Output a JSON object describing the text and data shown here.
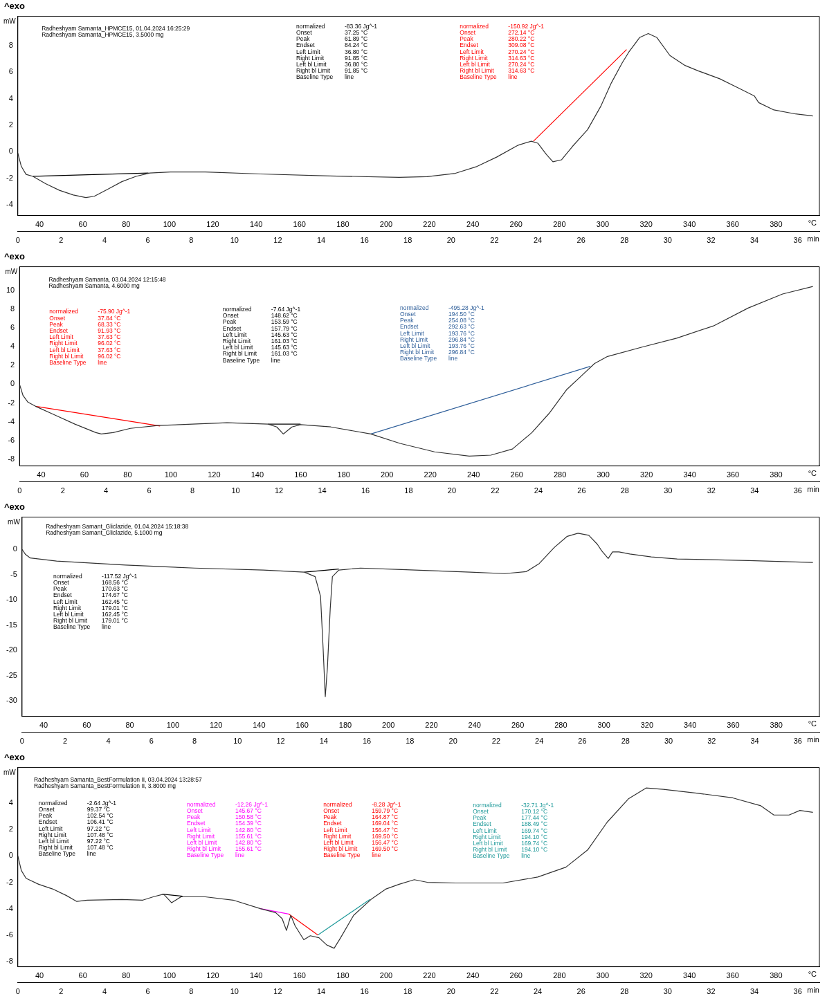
{
  "chart_data": [
    {
      "type": "line",
      "title": "^exo",
      "ylabel": "mW",
      "xlabel": "min",
      "x2label": "°C",
      "xlim": [
        0,
        37
      ],
      "xticks": [
        0,
        2,
        4,
        6,
        8,
        10,
        12,
        14,
        16,
        18,
        20,
        22,
        24,
        26,
        28,
        30,
        32,
        34,
        36
      ],
      "x2lim": [
        30,
        400
      ],
      "x2ticks": [
        40,
        60,
        80,
        100,
        120,
        140,
        160,
        180,
        200,
        220,
        240,
        260,
        280,
        300,
        320,
        340,
        360,
        380
      ],
      "ylim": [
        -4.8,
        10.2
      ],
      "yticks": [
        -4,
        -2,
        0,
        2,
        4,
        6,
        8
      ],
      "grid": false,
      "legend": false,
      "marker": "none",
      "line_style": "solid",
      "annotations": [
        "Radheshyam Samanta_HPMCE15, 01.04.2024 16:25:29\nRadheshyam Samanta_HPMCE15, 3.5000 mg",
        "normalized\t-83.36 Jg^-1\nOnset\t37.25 °C\nPeak\t61.89 °C\nEndset\t84.24 °C\nLeft Limit\t36.80 °C\nRight Limit\t91.85 °C\nLeft bl Limit\t36.80 °C\nRight bl Limit\t91.85 °C\nBaseline Type\tline",
        "normalized\t-150.92 Jg^-1\nOnset\t272.14 °C\nPeak\t280.22 °C\nEndset\t309.08 °C\nLeft Limit\t270.24 °C\nRight Limit\t314.63 °C\nLeft bl Limit\t270.24 °C\nRight bl Limit\t314.63 °C\nBaseline Type\tline"
      ],
      "series": [
        {
          "color": "#333333",
          "x": [
            0,
            0.16,
            0.38,
            0.7,
            1.28,
            1.92,
            2.56,
            3.14,
            3.53,
            4.17,
            4.8,
            5.45,
            6.09,
            7.05,
            8.65,
            11.2,
            14.4,
            17.6,
            18.9,
            20.2,
            21.2,
            22.1,
            23.1,
            23.7,
            24.0,
            24.4,
            24.7,
            25.1,
            25.6,
            26.3,
            26.9,
            27.4,
            27.9,
            28.2,
            28.7,
            29.1,
            29.5,
            30.1,
            30.8,
            31.4,
            32.4,
            33.2,
            34.0,
            34.2,
            34.9,
            35.9,
            36.7
          ],
          "values": [
            -0.1,
            -1.1,
            -1.7,
            -1.85,
            -2.4,
            -2.9,
            -3.25,
            -3.45,
            -3.35,
            -2.8,
            -2.25,
            -1.85,
            -1.6,
            -1.52,
            -1.52,
            -1.67,
            -1.82,
            -1.92,
            -1.87,
            -1.62,
            -1.1,
            -0.4,
            0.5,
            0.8,
            0.65,
            -0.2,
            -0.75,
            -0.6,
            0.4,
            1.67,
            3.4,
            5.2,
            6.7,
            7.5,
            8.6,
            8.9,
            8.6,
            7.25,
            6.5,
            6.1,
            5.5,
            4.85,
            4.2,
            3.7,
            3.15,
            2.85,
            2.7
          ]
        },
        {
          "color": "#000000",
          "x": [
            0.7,
            6.03
          ],
          "values": [
            -1.85,
            -1.6
          ]
        },
        {
          "color": "#ff0000",
          "x": [
            23.8,
            28.1
          ],
          "values": [
            0.8,
            7.7
          ]
        }
      ]
    },
    {
      "type": "line",
      "title": "^exo",
      "ylabel": "mW",
      "xlabel": "min",
      "x2label": "°C",
      "xlim": [
        0,
        37
      ],
      "xticks": [
        0,
        2,
        4,
        6,
        8,
        10,
        12,
        14,
        16,
        18,
        20,
        22,
        24,
        26,
        28,
        30,
        32,
        34,
        36
      ],
      "x2lim": [
        30,
        400
      ],
      "x2ticks": [
        40,
        60,
        80,
        100,
        120,
        140,
        160,
        180,
        200,
        220,
        240,
        260,
        280,
        300,
        320,
        340,
        360,
        380
      ],
      "ylim": [
        -8.7,
        12.5
      ],
      "yticks": [
        -8,
        -6,
        -4,
        -2,
        0,
        2,
        4,
        6,
        8,
        10
      ],
      "grid": false,
      "legend": false,
      "marker": "none",
      "line_style": "solid",
      "annotations": [
        "Radheshyam Samanta, 03.04.2024 12:15:48\nRadheshyam Samanta, 4.6000 mg",
        "normalized\t-75.90 Jg^-1\nOnset\t37.84 °C\nPeak\t68.33 °C\nEndset\t91.93 °C\nLeft Limit\t37.63 °C\nRight Limit\t96.02 °C\nLeft bl Limit\t37.63 °C\nRight bl Limit\t96.02 °C\nBaseline Type\tline",
        "normalized\t-7.64 Jg^-1\nOnset\t148.62 °C\nPeak\t153.59 °C\nEndset\t157.79 °C\nLeft Limit\t145.63 °C\nRight Limit\t161.03 °C\nLeft bl Limit\t145.63 °C\nRight bl Limit\t161.03 °C\nBaseline Type\tline",
        "normalized\t-495.28 Jg^-1\nOnset\t194.50 °C\nPeak\t254.08 °C\nEndset\t292.63 °C\nLeft Limit\t193.76 °C\nRight Limit\t296.84 °C\nLeft bl Limit\t193.76 °C\nRight bl Limit\t296.84 °C\nBaseline Type\tline"
      ],
      "series": [
        {
          "color": "#333333",
          "x": [
            0,
            0.16,
            0.38,
            0.74,
            1.6,
            2.56,
            3.53,
            3.78,
            4.33,
            5.13,
            6.4,
            8.0,
            9.6,
            11.5,
            11.9,
            12.2,
            12.6,
            13.0,
            14.4,
            16.25,
            17.6,
            19.2,
            20.8,
            21.8,
            22.8,
            23.7,
            24.5,
            25.3,
            26.0,
            26.6,
            27.2,
            28.8,
            30.4,
            32.1,
            33.7,
            35.3,
            36.7
          ],
          "values": [
            0,
            -1.2,
            -1.9,
            -2.35,
            -3.25,
            -4.25,
            -5.15,
            -5.3,
            -5.15,
            -4.7,
            -4.4,
            -4.25,
            -4.1,
            -4.25,
            -4.55,
            -5.3,
            -4.55,
            -4.3,
            -4.55,
            -5.3,
            -6.3,
            -7.2,
            -7.65,
            -7.55,
            -6.9,
            -5.15,
            -3.1,
            -0.6,
            0.9,
            2.2,
            2.95,
            3.95,
            4.9,
            6.2,
            8.1,
            9.6,
            10.4
          ]
        },
        {
          "color": "#ff0000",
          "x": [
            0.74,
            6.5
          ],
          "values": [
            -2.35,
            -4.45
          ]
        },
        {
          "color": "#000000",
          "x": [
            11.5,
            13.0
          ],
          "values": [
            -4.25,
            -4.25
          ]
        },
        {
          "color": "#2f5f9a",
          "x": [
            16.25,
            26.4
          ],
          "values": [
            -5.3,
            1.9
          ]
        }
      ]
    },
    {
      "type": "line",
      "title": "^exo",
      "ylabel": "mW",
      "xlabel": "min",
      "x2label": "°C",
      "xlim": [
        0,
        37
      ],
      "xticks": [
        0,
        2,
        4,
        6,
        8,
        10,
        12,
        14,
        16,
        18,
        20,
        22,
        24,
        26,
        28,
        30,
        32,
        34,
        36
      ],
      "x2lim": [
        30,
        400
      ],
      "x2ticks": [
        40,
        60,
        80,
        100,
        120,
        140,
        160,
        180,
        200,
        220,
        240,
        260,
        280,
        300,
        320,
        340,
        360,
        380
      ],
      "ylim": [
        -33.1,
        6.4
      ],
      "yticks": [
        -30,
        -25,
        -20,
        -15,
        -10,
        -5,
        0
      ],
      "grid": false,
      "legend": false,
      "marker": "none",
      "line_style": "solid",
      "annotations": [
        "Radheshyam Samant_Gliclazide, 01.04.2024 15:18:38\nRadheshyam Samant_Gliclazide, 5.1000 mg",
        "normalized\t-117.52 Jg^-1\nOnset\t168.56 °C\nPeak\t170.63 °C\nEndset\t174.67 °C\nLeft Limit\t162.45 °C\nRight Limit\t179.01 °C\nLeft bl Limit\t162.45 °C\nRight bl Limit\t179.01 °C\nBaseline Type\tline"
      ],
      "series": [
        {
          "color": "#333333",
          "x": [
            0,
            0.16,
            0.38,
            1.6,
            4.8,
            8.0,
            11.2,
            13.1,
            13.6,
            13.85,
            13.97,
            14.07,
            14.17,
            14.3,
            14.4,
            14.7,
            15.7,
            17.6,
            20.8,
            22.4,
            23.4,
            24.0,
            24.7,
            25.3,
            25.8,
            26.3,
            26.7,
            26.9,
            27.2,
            27.4,
            27.7,
            28.2,
            29.2,
            30.4,
            33.7,
            36.7
          ],
          "values": [
            0,
            -1.0,
            -1.7,
            -2.3,
            -3.1,
            -3.7,
            -4.1,
            -4.5,
            -5.4,
            -9.3,
            -19.6,
            -29.2,
            -23.4,
            -11.8,
            -5.4,
            -4.1,
            -3.7,
            -4.0,
            -4.5,
            -4.8,
            -4.4,
            -2.8,
            0.4,
            2.6,
            3.2,
            2.8,
            1.0,
            -0.3,
            -1.8,
            -0.5,
            -0.5,
            -0.9,
            -1.5,
            -1.9,
            -2.2,
            -2.6
          ]
        },
        {
          "color": "#000000",
          "x": [
            13.1,
            14.7
          ],
          "values": [
            -4.5,
            -3.9
          ]
        }
      ]
    },
    {
      "type": "line",
      "title": "^exo",
      "ylabel": "mW",
      "xlabel": "min",
      "x2label": "°C",
      "xlim": [
        0,
        37
      ],
      "xticks": [
        0,
        2,
        4,
        6,
        8,
        10,
        12,
        14,
        16,
        18,
        20,
        22,
        24,
        26,
        28,
        30,
        32,
        34,
        36
      ],
      "x2lim": [
        30,
        400
      ],
      "x2ticks": [
        40,
        60,
        80,
        100,
        120,
        140,
        160,
        180,
        200,
        220,
        240,
        260,
        280,
        300,
        320,
        340,
        360,
        380
      ],
      "ylim": [
        -8.4,
        6.7
      ],
      "yticks": [
        -8,
        -6,
        -4,
        -2,
        0,
        2,
        4
      ],
      "grid": false,
      "legend": false,
      "marker": "none",
      "line_style": "solid",
      "annotations": [
        "Radheshyam Samanta_BestFormulation II, 03.04.2024 13:28:57\nRadheshyam Samanta_BestFormulation II, 3.8000 mg",
        "normalized\t-2.64 Jg^-1\nOnset\t99.37 °C\nPeak\t102.54 °C\nEndset\t106.41 °C\nLeft Limit\t97.22 °C\nRight Limit\t107.48 °C\nLeft bl Limit\t97.22 °C\nRight bl Limit\t107.48 °C\nBaseline Type\tline",
        "normalized\t-12.26 Jg^-1\nOnset\t145.67 °C\nPeak\t150.58 °C\nEndset\t154.39 °C\nLeft Limit\t142.80 °C\nRight Limit\t155.61 °C\nLeft bl Limit\t142.80 °C\nRight bl Limit\t155.61 °C\nBaseline Type\tline",
        "normalized\t-8.28 Jg^-1\nOnset\t159.79 °C\nPeak\t164.87 °C\nEndset\t169.04 °C\nLeft Limit\t156.47 °C\nRight Limit\t169.50 °C\nLeft bl Limit\t156.47 °C\nRight bl Limit\t169.50 °C\nBaseline Type\tline",
        "normalized\t-32.71 Jg^-1\nOnset\t170.12 °C\nPeak\t177.44 °C\nEndset\t188.49 °C\nLeft Limit\t169.74 °C\nRight Limit\t194.10 °C\nLeft bl Limit\t169.74 °C\nRight bl Limit\t194.10 °C\nBaseline Type\tline"
      ],
      "series": [
        {
          "color": "#333333",
          "x": [
            0,
            0.16,
            0.38,
            0.96,
            1.6,
            2.24,
            2.72,
            3.2,
            4.8,
            5.77,
            6.25,
            6.73,
            7.1,
            7.53,
            8.65,
            9.94,
            11.2,
            11.9,
            12.2,
            12.4,
            12.6,
            12.8,
            13.2,
            13.5,
            13.9,
            14.26,
            14.6,
            14.9,
            15.5,
            16.3,
            17.0,
            17.6,
            18.3,
            18.9,
            20.2,
            22.4,
            24.0,
            25.3,
            26.3,
            27.2,
            28.2,
            29.0,
            29.8,
            31.4,
            33.0,
            34.3,
            34.9,
            35.6,
            36.1,
            36.7
          ],
          "values": [
            0,
            -1.1,
            -1.7,
            -2.15,
            -2.5,
            -3.0,
            -3.45,
            -3.35,
            -3.3,
            -3.35,
            -3.1,
            -2.9,
            -3.55,
            -3.1,
            -3.1,
            -3.35,
            -4.0,
            -4.3,
            -4.75,
            -5.65,
            -4.5,
            -5.3,
            -6.35,
            -6.05,
            -6.2,
            -6.75,
            -7.0,
            -6.2,
            -4.5,
            -3.3,
            -2.5,
            -2.15,
            -1.8,
            -2.0,
            -2.05,
            -2.05,
            -1.6,
            -0.85,
            0.45,
            2.55,
            4.35,
            5.15,
            5.05,
            4.75,
            4.4,
            3.8,
            3.1,
            3.1,
            3.45,
            3.3
          ]
        },
        {
          "color": "#000000",
          "x": [
            6.67,
            7.6
          ],
          "values": [
            -2.9,
            -3.05
          ]
        },
        {
          "color": "#ff00ff",
          "x": [
            11.2,
            12.5
          ],
          "values": [
            -4.0,
            -4.4
          ]
        },
        {
          "color": "#ff0000",
          "x": [
            12.5,
            13.85
          ],
          "values": [
            -4.4,
            -6.0
          ]
        },
        {
          "color": "#1f9a9a",
          "x": [
            13.85,
            16.25
          ],
          "values": [
            -6.0,
            -3.3
          ]
        }
      ]
    }
  ]
}
